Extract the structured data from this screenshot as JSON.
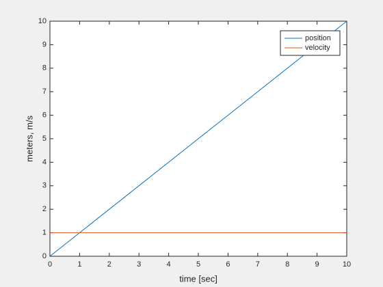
{
  "chart_data": {
    "type": "line",
    "x": [
      0,
      10
    ],
    "series": [
      {
        "name": "position",
        "color": "#0072bd",
        "values": [
          0,
          10
        ]
      },
      {
        "name": "velocity",
        "color": "#d95319",
        "values": [
          1,
          1
        ]
      }
    ],
    "xlabel": "time [sec]",
    "ylabel": "meters, m/s",
    "xlim": [
      0,
      10
    ],
    "ylim": [
      0,
      10
    ],
    "xticks": [
      0,
      1,
      2,
      3,
      4,
      5,
      6,
      7,
      8,
      9,
      10
    ],
    "yticks": [
      0,
      1,
      2,
      3,
      4,
      5,
      6,
      7,
      8,
      9,
      10
    ],
    "grid": false,
    "legend": "northeast"
  }
}
